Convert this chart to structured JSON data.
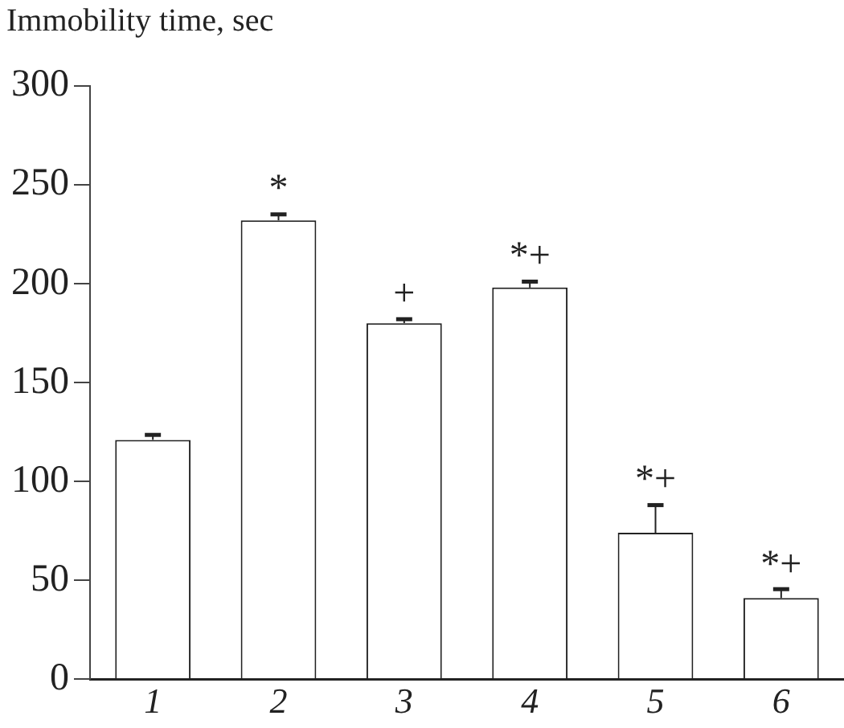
{
  "chart_data": {
    "type": "bar",
    "ylabel": "Immobility time, sec",
    "categories": [
      "1",
      "2",
      "3",
      "4",
      "5",
      "6"
    ],
    "values": [
      121,
      232,
      180,
      198,
      74,
      41
    ],
    "errors": [
      2.5,
      3,
      2,
      3,
      14,
      4.5
    ],
    "color": "#ffffff",
    "ylim": [
      0,
      300
    ],
    "yticks": [
      0,
      50,
      100,
      150,
      200,
      250,
      300
    ],
    "annotations": [
      {
        "text": "*",
        "x": "2",
        "y": 235
      },
      {
        "text": "+",
        "x": "3",
        "y": 182
      },
      {
        "text": "*+",
        "x": "4",
        "y": 201
      },
      {
        "text": "*+",
        "x": "5",
        "y": 88
      },
      {
        "text": "*+",
        "x": "6",
        "y": 45
      }
    ],
    "grid": false,
    "legend": false
  }
}
